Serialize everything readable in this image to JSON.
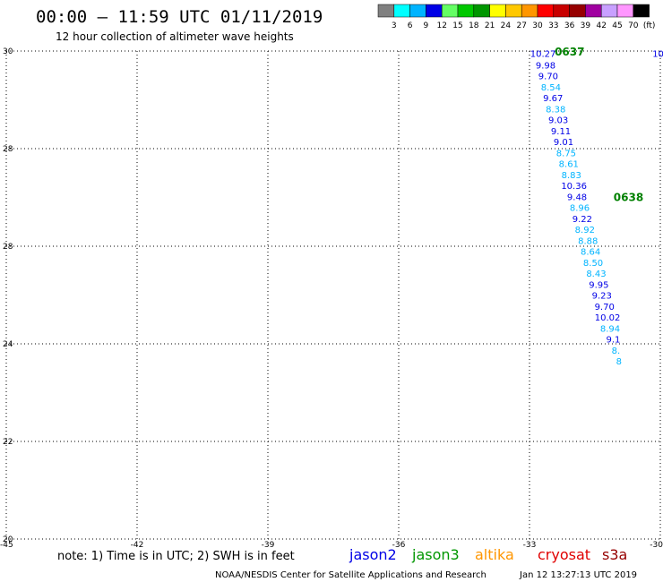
{
  "header": {
    "title": "00:00 – 11:59 UTC 01/11/2019",
    "subtitle": "12 hour collection of altimeter wave heights"
  },
  "colorbar": {
    "colors": [
      "#808080",
      "#00ffff",
      "#00b4ff",
      "#0000e6",
      "#64ff64",
      "#00c800",
      "#009600",
      "#ffff00",
      "#ffc800",
      "#ff9600",
      "#ff0000",
      "#c80000",
      "#960000",
      "#a000a0",
      "#c8a0ff",
      "#ff96ff",
      "#000000"
    ],
    "labels": [
      "3",
      "6",
      "9",
      "12",
      "15",
      "18",
      "21",
      "24",
      "27",
      "30",
      "33",
      "36",
      "39",
      "42",
      "45",
      "70",
      "(ft)"
    ]
  },
  "chart_data": {
    "type": "scatter",
    "xlim": [
      -45,
      -30
    ],
    "ylim": [
      20,
      30
    ],
    "x_ticks": [
      "-45",
      "-42",
      "-39",
      "-36",
      "-33",
      "-30"
    ],
    "y_ticks": [
      "30",
      "28",
      "26",
      "24",
      "22",
      "20"
    ],
    "y_tick_labels_shown": [
      "30",
      "28",
      "28",
      "24",
      "22",
      "20"
    ],
    "grid": true,
    "points": [
      {
        "x": -32.69,
        "y": 29.95,
        "label": "10.27",
        "color": "#0000e6"
      },
      {
        "x": -30.05,
        "y": 29.95,
        "label": "10",
        "color": "#0000e6"
      },
      {
        "x": -32.63,
        "y": 29.72,
        "label": "9.98",
        "color": "#0000e6"
      },
      {
        "x": -32.57,
        "y": 29.5,
        "label": "9.70",
        "color": "#0000e6"
      },
      {
        "x": -32.51,
        "y": 29.27,
        "label": "8.54",
        "color": "#00b4ff"
      },
      {
        "x": -32.46,
        "y": 29.05,
        "label": "9.67",
        "color": "#0000e6"
      },
      {
        "x": -32.4,
        "y": 28.82,
        "label": "8.38",
        "color": "#00b4ff"
      },
      {
        "x": -32.34,
        "y": 28.6,
        "label": "9.03",
        "color": "#0000e6"
      },
      {
        "x": -32.28,
        "y": 28.37,
        "label": "9.11",
        "color": "#0000e6"
      },
      {
        "x": -32.22,
        "y": 28.15,
        "label": "9.01",
        "color": "#0000e6"
      },
      {
        "x": -32.16,
        "y": 27.92,
        "label": "8.75",
        "color": "#00b4ff"
      },
      {
        "x": -32.1,
        "y": 27.7,
        "label": "8.61",
        "color": "#00b4ff"
      },
      {
        "x": -32.04,
        "y": 27.47,
        "label": "8.83",
        "color": "#00b4ff"
      },
      {
        "x": -31.98,
        "y": 27.25,
        "label": "10.36",
        "color": "#0000e6"
      },
      {
        "x": -31.91,
        "y": 27.02,
        "label": "9.48",
        "color": "#0000e6"
      },
      {
        "x": -31.85,
        "y": 26.8,
        "label": "8.96",
        "color": "#00b4ff"
      },
      {
        "x": -31.79,
        "y": 26.57,
        "label": "9.22",
        "color": "#0000e6"
      },
      {
        "x": -31.73,
        "y": 26.35,
        "label": "8.92",
        "color": "#00b4ff"
      },
      {
        "x": -31.66,
        "y": 26.12,
        "label": "8.88",
        "color": "#00b4ff"
      },
      {
        "x": -31.6,
        "y": 25.9,
        "label": "8.64",
        "color": "#00b4ff"
      },
      {
        "x": -31.54,
        "y": 25.67,
        "label": "8.50",
        "color": "#00b4ff"
      },
      {
        "x": -31.47,
        "y": 25.45,
        "label": "8.43",
        "color": "#00b4ff"
      },
      {
        "x": -31.41,
        "y": 25.22,
        "label": "9.95",
        "color": "#0000e6"
      },
      {
        "x": -31.34,
        "y": 25.0,
        "label": "9.23",
        "color": "#0000e6"
      },
      {
        "x": -31.28,
        "y": 24.77,
        "label": "9.70",
        "color": "#0000e6"
      },
      {
        "x": -31.21,
        "y": 24.55,
        "label": "10.02",
        "color": "#0000e6"
      },
      {
        "x": -31.15,
        "y": 24.32,
        "label": "8.94",
        "color": "#00b4ff"
      },
      {
        "x": -31.08,
        "y": 24.1,
        "label": "9.1",
        "color": "#0000e6"
      },
      {
        "x": -31.02,
        "y": 23.87,
        "label": "8.",
        "color": "#00b4ff"
      },
      {
        "x": -30.95,
        "y": 23.65,
        "label": "8",
        "color": "#00b4ff"
      }
    ],
    "pass_labels": [
      {
        "text": "0637",
        "x": -32.08,
        "y": 29.98,
        "color": "#008000"
      },
      {
        "text": "0638",
        "x": -30.73,
        "y": 27.0,
        "color": "#008000"
      }
    ]
  },
  "footer": {
    "note": "note: 1) Time is in UTC; 2) SWH is in feet",
    "satellites": [
      {
        "name": "jason2",
        "color": "#0000e6"
      },
      {
        "name": "jason3",
        "color": "#009600"
      },
      {
        "name": "altika",
        "color": "#ff9600"
      },
      {
        "name": "cryosat",
        "color": "#e00000"
      },
      {
        "name": "s3a",
        "color": "#960000"
      }
    ],
    "credit": "NOAA/NESDIS Center for Satellite Applications and Research",
    "timestamp": "Jan 12 13:27:13 UTC 2019"
  }
}
